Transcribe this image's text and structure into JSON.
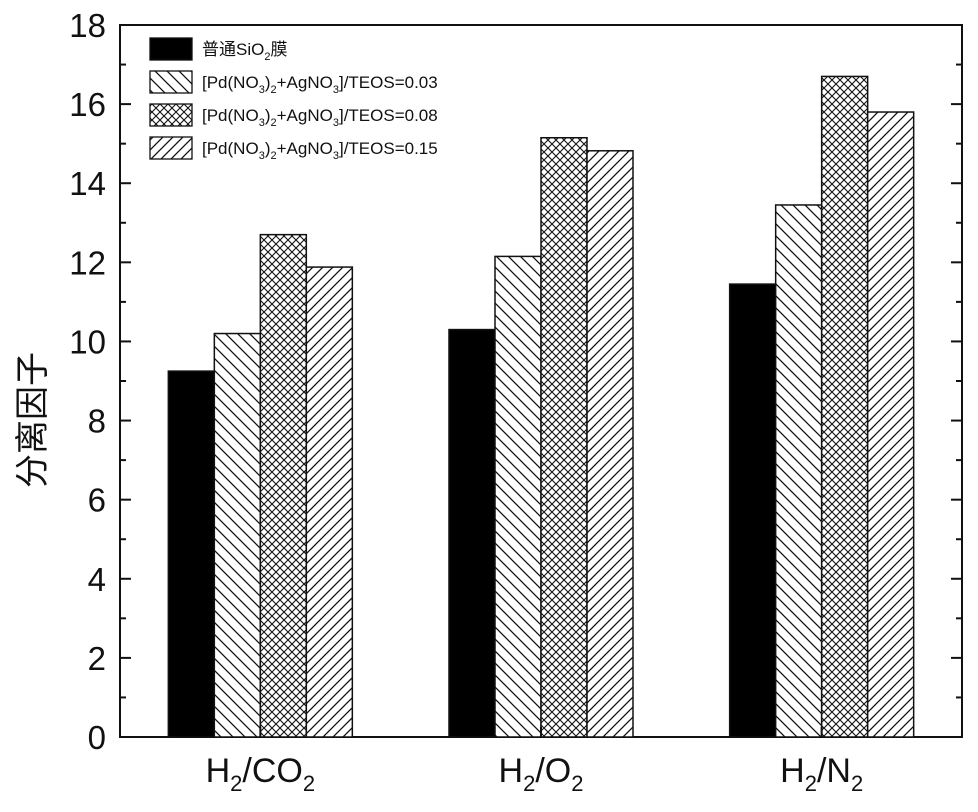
{
  "chart_data": {
    "type": "bar",
    "ylabel": "分离因子",
    "xlabel": "",
    "ylim": [
      0,
      18
    ],
    "yticks": [
      0,
      2,
      4,
      6,
      8,
      10,
      12,
      14,
      16,
      18
    ],
    "categories": [
      {
        "parts": [
          {
            "t": "H",
            "sub": false
          },
          {
            "t": "2",
            "sub": true
          },
          {
            "t": "/CO",
            "sub": false
          },
          {
            "t": "2",
            "sub": true
          }
        ]
      },
      {
        "parts": [
          {
            "t": "H",
            "sub": false
          },
          {
            "t": "2",
            "sub": true
          },
          {
            "t": "/O",
            "sub": false
          },
          {
            "t": "2",
            "sub": true
          }
        ]
      },
      {
        "parts": [
          {
            "t": "H",
            "sub": false
          },
          {
            "t": "2",
            "sub": true
          },
          {
            "t": "/N",
            "sub": false
          },
          {
            "t": "2",
            "sub": true
          }
        ]
      }
    ],
    "series": [
      {
        "name_parts": [
          {
            "t": "普通SiO",
            "sub": false
          },
          {
            "t": "2",
            "sub": true
          },
          {
            "t": "膜",
            "sub": false
          }
        ],
        "pattern": "solid",
        "values": [
          9.25,
          10.3,
          11.45
        ]
      },
      {
        "name_parts": [
          {
            "t": "[Pd(NO",
            "sub": false
          },
          {
            "t": "3",
            "sub": true
          },
          {
            "t": ")",
            "sub": false
          },
          {
            "t": "2",
            "sub": true
          },
          {
            "t": "+AgNO",
            "sub": false
          },
          {
            "t": "3",
            "sub": true
          },
          {
            "t": "]/TEOS=0.03",
            "sub": false
          }
        ],
        "pattern": "backslash-hatch",
        "values": [
          10.2,
          12.15,
          13.45
        ]
      },
      {
        "name_parts": [
          {
            "t": "[Pd(NO",
            "sub": false
          },
          {
            "t": "3",
            "sub": true
          },
          {
            "t": ")",
            "sub": false
          },
          {
            "t": "2",
            "sub": true
          },
          {
            "t": "+AgNO",
            "sub": false
          },
          {
            "t": "3",
            "sub": true
          },
          {
            "t": "]/TEOS=0.08",
            "sub": false
          }
        ],
        "pattern": "crosshatch",
        "values": [
          12.7,
          15.15,
          16.7
        ]
      },
      {
        "name_parts": [
          {
            "t": "[Pd(NO",
            "sub": false
          },
          {
            "t": "3",
            "sub": true
          },
          {
            "t": ")",
            "sub": false
          },
          {
            "t": "2",
            "sub": true
          },
          {
            "t": "+AgNO",
            "sub": false
          },
          {
            "t": "3",
            "sub": true
          },
          {
            "t": "]/TEOS=0.15",
            "sub": false
          }
        ],
        "pattern": "slash-hatch",
        "values": [
          11.88,
          14.82,
          15.8
        ]
      }
    ],
    "legend_position": "top-left",
    "grid": false
  }
}
